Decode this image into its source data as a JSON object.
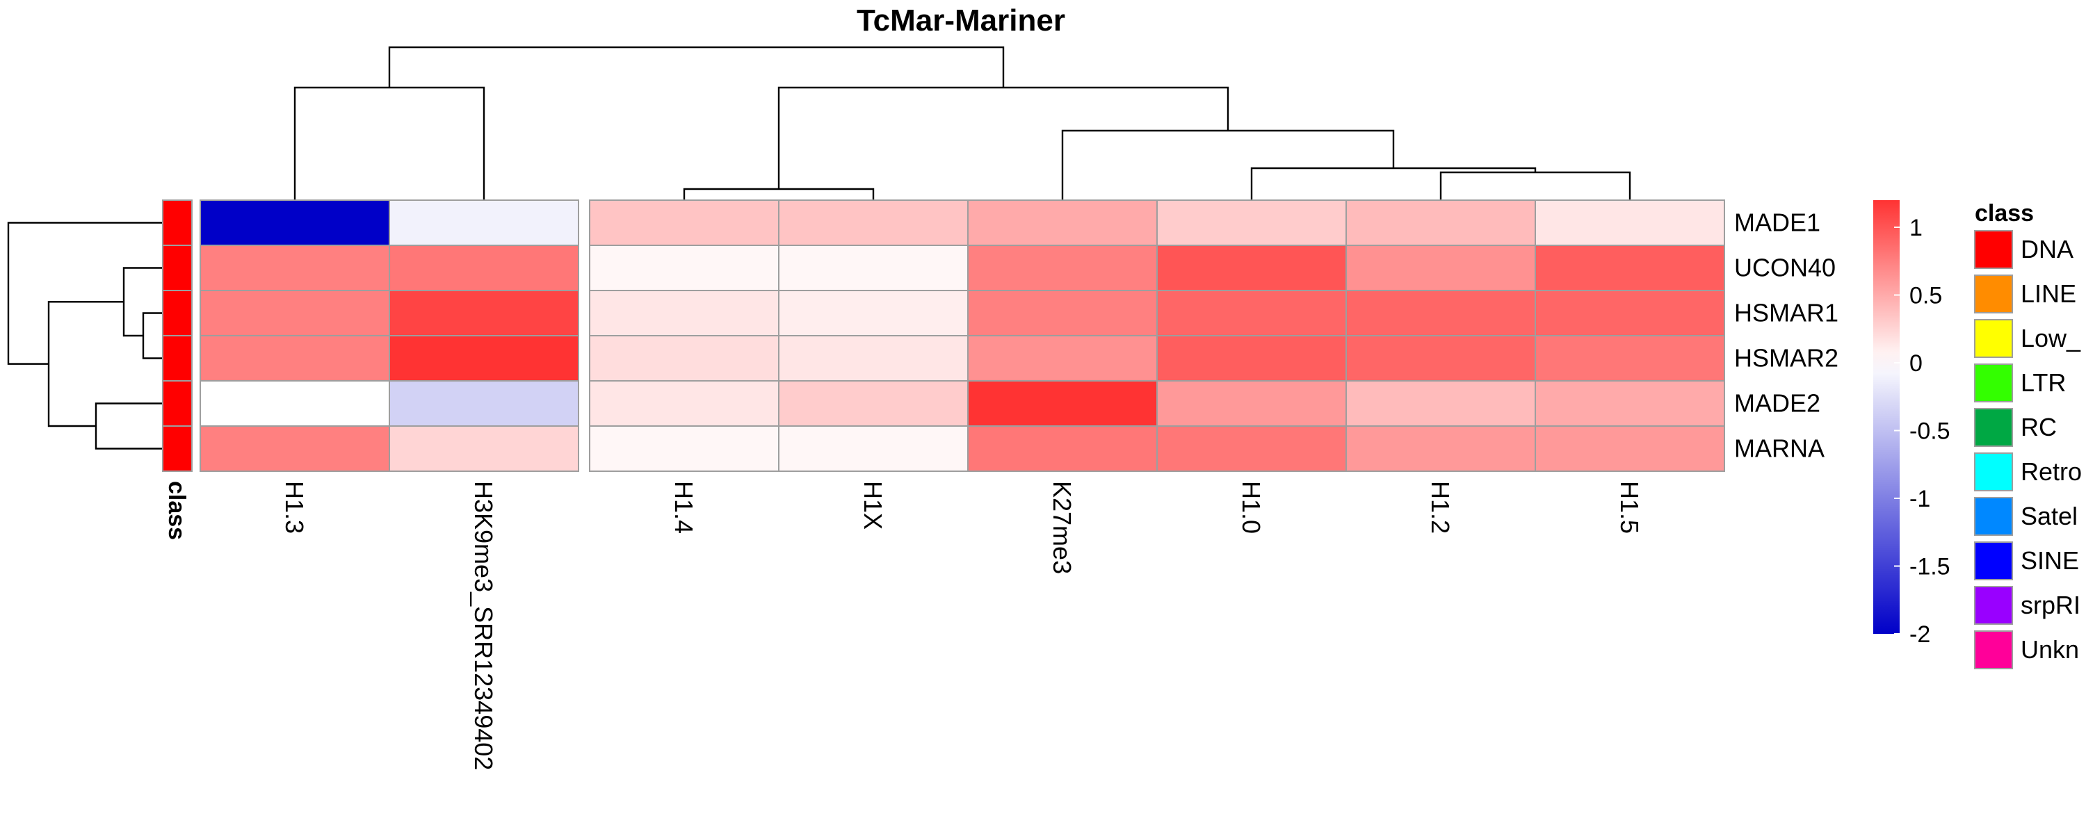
{
  "chart_data": {
    "type": "heatmap",
    "title": "TcMar-Mariner",
    "rows": [
      "MADE1",
      "UCON40",
      "HSMAR1",
      "HSMAR2",
      "MADE2",
      "MARNA"
    ],
    "columns": [
      "H1.3",
      "H3K9me3_SRR12349402",
      "H1.4",
      "H1X",
      "K27me3",
      "H1.0",
      "H1.2",
      "H1.5"
    ],
    "column_gap_after": "H3K9me3_SRR12349402",
    "values": [
      [
        -2.0,
        -0.1,
        0.35,
        0.35,
        0.5,
        0.3,
        0.4,
        0.15
      ],
      [
        0.75,
        0.8,
        0.05,
        0.05,
        0.75,
        1.0,
        0.65,
        0.95
      ],
      [
        0.75,
        1.1,
        0.15,
        0.1,
        0.75,
        0.9,
        0.9,
        0.9
      ],
      [
        0.75,
        1.2,
        0.2,
        0.15,
        0.65,
        0.95,
        0.9,
        0.8
      ],
      [
        0.0,
        -0.35,
        0.15,
        0.3,
        1.2,
        0.6,
        0.4,
        0.5
      ],
      [
        0.75,
        0.25,
        0.05,
        0.05,
        0.8,
        0.8,
        0.6,
        0.6
      ]
    ],
    "color_scale": {
      "min": -2,
      "max": 1.2,
      "low_color": "#0000c8",
      "mid_color": "#ffffff",
      "high_color": "#ff3333",
      "ticks": [
        "1",
        "0.5",
        "0",
        "-0.5",
        "-1",
        "-1.5",
        "-2"
      ]
    },
    "annotation": {
      "title": "class",
      "row_values": [
        "DNA",
        "DNA",
        "DNA",
        "DNA",
        "DNA",
        "DNA"
      ],
      "legend": [
        {
          "label": "DNA",
          "color": "#ff0000"
        },
        {
          "label": "LINE",
          "color": "#ff8c00"
        },
        {
          "label": "Low_",
          "color": "#ffff00"
        },
        {
          "label": "LTR",
          "color": "#33ff00"
        },
        {
          "label": "RC",
          "color": "#00a844"
        },
        {
          "label": "Retro",
          "color": "#00ffff"
        },
        {
          "label": "Satel",
          "color": "#0088ff"
        },
        {
          "label": "SINE",
          "color": "#0000ff"
        },
        {
          "label": "srpRI",
          "color": "#9900ff"
        },
        {
          "label": "Unkn",
          "color": "#ff0099"
        }
      ]
    },
    "col_dendrogram": [
      [
        "H1.3",
        "H3K9me3_SRR12349402"
      ],
      [
        [
          "H1.4",
          "H1X"
        ],
        [
          "K27me3",
          [
            "H1.0",
            [
              "H1.2",
              "H1.5"
            ]
          ]
        ]
      ]
    ],
    "row_dendrogram": [
      "MADE1",
      [
        [
          [
            "UCON40",
            [
              "HSMAR1",
              "HSMAR2"
            ]
          ]
        ],
        [
          "MADE2",
          "MARNA"
        ]
      ]
    ]
  }
}
